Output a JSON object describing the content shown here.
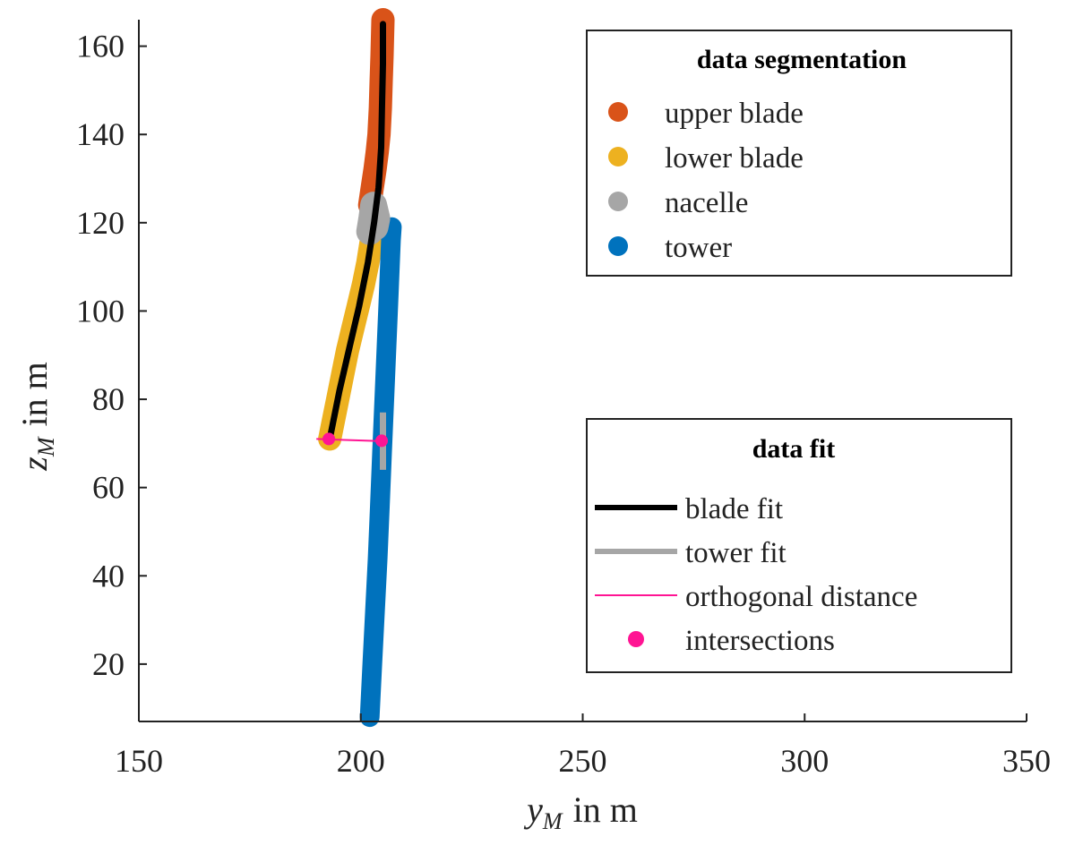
{
  "chart_data": {
    "type": "scatter",
    "xlabel": {
      "main": "y",
      "sub": "M",
      "unit": "in m"
    },
    "ylabel": {
      "main": "z",
      "sub": "M",
      "unit": "in m"
    },
    "xlim": [
      150,
      350
    ],
    "ylim": [
      7,
      166
    ],
    "x_ticks": [
      150,
      200,
      250,
      300,
      350
    ],
    "y_ticks": [
      20,
      40,
      60,
      80,
      100,
      120,
      140,
      160
    ],
    "grid": false,
    "segmentation_legend": {
      "title": "data segmentation",
      "placement": "top-right",
      "items": [
        {
          "key": "upper_blade",
          "label": "upper blade",
          "color": "#D95319"
        },
        {
          "key": "lower_blade",
          "label": "lower blade",
          "color": "#EDB120"
        },
        {
          "key": "nacelle",
          "label": "nacelle",
          "color": "#A6A6A6"
        },
        {
          "key": "tower",
          "label": "tower",
          "color": "#0072BD"
        }
      ]
    },
    "fit_legend": {
      "title": "data fit",
      "placement": "bottom-right",
      "items": [
        {
          "key": "blade_fit",
          "label": "blade fit",
          "color": "#000000",
          "kind": "thick-line"
        },
        {
          "key": "tower_fit",
          "label": "tower fit",
          "color": "#A6A6A6",
          "kind": "thick-line"
        },
        {
          "key": "orthogonal_distance",
          "label": "orthogonal distance",
          "color": "#FF1493",
          "kind": "thin-line"
        },
        {
          "key": "intersections",
          "label": "intersections",
          "color": "#FF1493",
          "kind": "marker"
        }
      ]
    },
    "series": {
      "upper_blade": [
        [
          202.0,
          124
        ],
        [
          202.6,
          128
        ],
        [
          203.2,
          132
        ],
        [
          203.7,
          136
        ],
        [
          204.1,
          140
        ],
        [
          204.4,
          146
        ],
        [
          204.6,
          152
        ],
        [
          204.8,
          158
        ],
        [
          205.0,
          166
        ]
      ],
      "lower_blade": [
        [
          193.0,
          71
        ],
        [
          194.0,
          76
        ],
        [
          195.0,
          81
        ],
        [
          196.0,
          86
        ],
        [
          197.0,
          91
        ],
        [
          198.2,
          96
        ],
        [
          199.4,
          101
        ],
        [
          200.6,
          106
        ],
        [
          201.6,
          111
        ],
        [
          202.4,
          116
        ]
      ],
      "nacelle": [
        [
          202.0,
          118
        ],
        [
          202.5,
          121
        ],
        [
          202.9,
          124
        ],
        [
          203.6,
          121
        ],
        [
          203.2,
          119
        ]
      ],
      "tower": [
        [
          202.0,
          8
        ],
        [
          202.6,
          20
        ],
        [
          203.2,
          32
        ],
        [
          203.8,
          44
        ],
        [
          204.3,
          56
        ],
        [
          204.8,
          68
        ],
        [
          205.3,
          80
        ],
        [
          205.8,
          92
        ],
        [
          206.3,
          104
        ],
        [
          206.8,
          116
        ],
        [
          207.0,
          119
        ]
      ],
      "blade_fit": [
        [
          193.0,
          71
        ],
        [
          195.2,
          82
        ],
        [
          197.5,
          92
        ],
        [
          199.6,
          101
        ],
        [
          201.6,
          111
        ],
        [
          203.0,
          120
        ],
        [
          204.0,
          128
        ],
        [
          204.6,
          137
        ],
        [
          204.8,
          147
        ],
        [
          205.0,
          156
        ],
        [
          205.0,
          165
        ]
      ],
      "tower_fit": [
        [
          205.0,
          64
        ],
        [
          205.0,
          77
        ]
      ],
      "orthogonal_distance": [
        [
          190.0,
          71
        ],
        [
          205.0,
          70.5
        ]
      ],
      "intersections": [
        [
          192.8,
          71
        ],
        [
          204.7,
          70.6
        ]
      ]
    }
  }
}
